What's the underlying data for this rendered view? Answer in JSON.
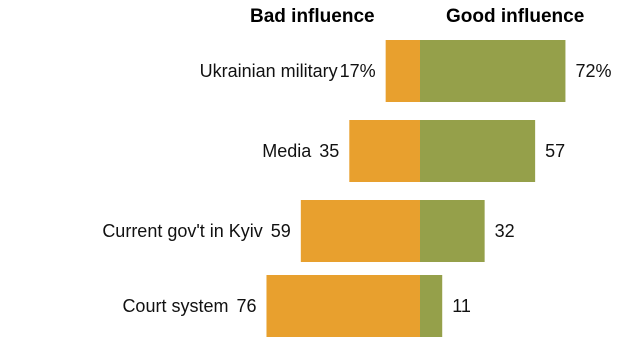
{
  "chart_data": {
    "type": "bar",
    "orientation": "diverging-horizontal",
    "categories": [
      "Ukrainian military",
      "Media",
      "Current gov't in Kyiv",
      "Court system"
    ],
    "series": [
      {
        "name": "Bad influence",
        "values": [
          17,
          35,
          59,
          76
        ],
        "color": "#E8A02E",
        "labels": [
          "17%",
          "35",
          "59",
          "76"
        ]
      },
      {
        "name": "Good influence",
        "values": [
          72,
          57,
          32,
          11
        ],
        "color": "#95A04A",
        "labels": [
          "72%",
          "57",
          "32",
          "11"
        ]
      }
    ],
    "title": "",
    "xlabel": "",
    "ylabel": "",
    "grid": false
  }
}
